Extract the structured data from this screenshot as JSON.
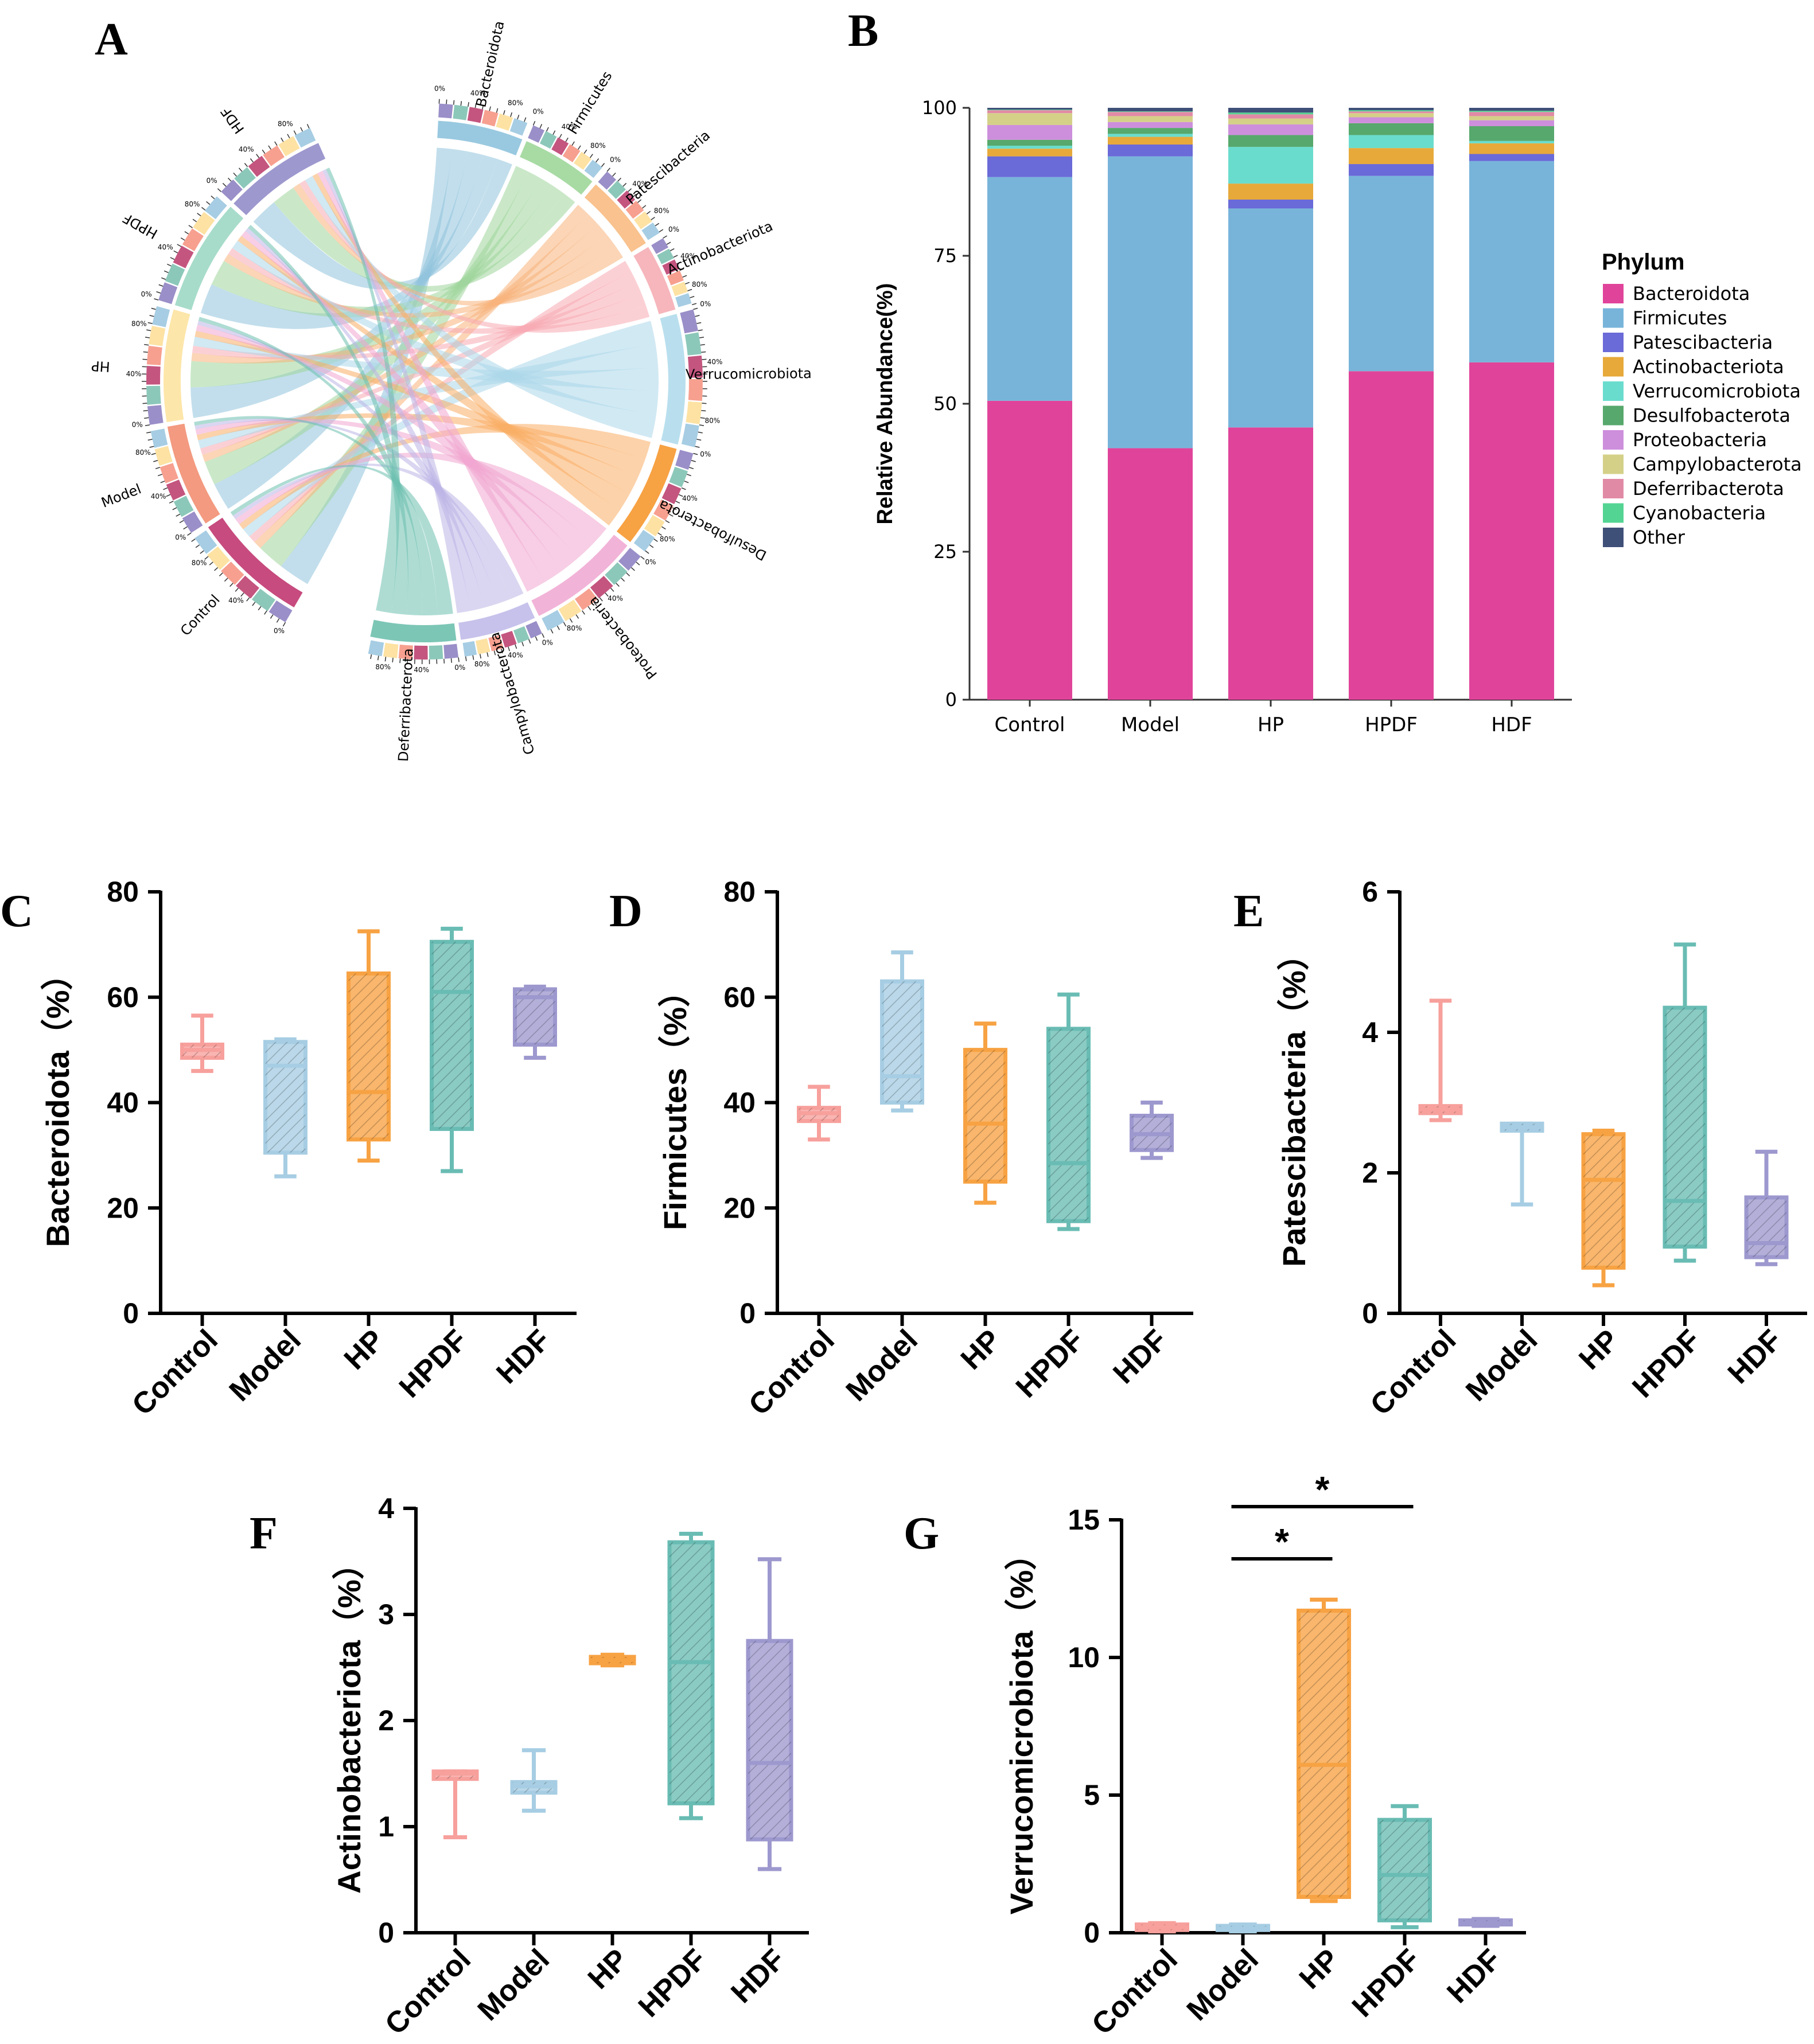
{
  "panels": {
    "A": "A",
    "B": "B",
    "C": "C",
    "D": "D",
    "E": "E",
    "F": "F",
    "G": "G"
  },
  "colors": {
    "groups": {
      "Control": "#f7a09c",
      "Model": "#a6cde3",
      "HP": "#f7a243",
      "HPDF": "#69bcb3",
      "HDF": "#9d98ce"
    },
    "phyla": {
      "Bacteroidota": "#e0449a",
      "Firmicutes": "#78b4da",
      "Patescibacteria": "#6a6ad8",
      "Actinobacteriota": "#e7a93a",
      "Verrucomicrobiota": "#6adccd",
      "Desulfobacterota": "#57a86c",
      "Proteobacteria": "#cd8fdc",
      "Campylobacterota": "#d4d088",
      "Deferribacterota": "#e18aa6",
      "Cyanobacteria": "#54d493",
      "Other": "#3f5078"
    }
  },
  "chord": {
    "groups": [
      "Control",
      "Model",
      "HP",
      "HPDF",
      "HDF"
    ],
    "phyla": [
      "Bacteroidota",
      "Firmicutes",
      "Patescibacteria",
      "Actinobacteriota",
      "Verrucomicrobiota",
      "Desulfobacterota",
      "Proteobacteria",
      "Campylobacterota",
      "Deferribacterota"
    ],
    "tick_labels": [
      "0%",
      "40%",
      "80%"
    ]
  },
  "chart_data": [
    {
      "panel": "B",
      "type": "bar",
      "stacked": true,
      "title": "",
      "xlabel": "",
      "ylabel": "Relative Abundance(%)",
      "ylim": [
        0,
        100
      ],
      "yticks": [
        "0",
        "25",
        "50",
        "75",
        "100"
      ],
      "categories": [
        "Control",
        "Model",
        "HP",
        "HPDF",
        "HDF"
      ],
      "legend_title": "Phylum",
      "series": [
        {
          "name": "Bacteroidota",
          "values": [
            50.5,
            42.5,
            46.0,
            55.5,
            57.0
          ]
        },
        {
          "name": "Firmicutes",
          "values": [
            37.8,
            49.3,
            37.0,
            33.0,
            34.0
          ]
        },
        {
          "name": "Patescibacteria",
          "values": [
            3.5,
            2.0,
            1.5,
            2.0,
            1.2
          ]
        },
        {
          "name": "Actinobacteriota",
          "values": [
            1.3,
            1.3,
            2.7,
            2.7,
            1.8
          ]
        },
        {
          "name": "Verrucomicrobiota",
          "values": [
            0.5,
            0.5,
            6.2,
            2.2,
            0.4
          ]
        },
        {
          "name": "Desulfobacterota",
          "values": [
            1.0,
            1.0,
            2.0,
            2.0,
            2.5
          ]
        },
        {
          "name": "Proteobacteria",
          "values": [
            2.5,
            1.0,
            1.8,
            1.0,
            1.0
          ]
        },
        {
          "name": "Campylobacterota",
          "values": [
            2.0,
            1.0,
            1.0,
            0.7,
            0.7
          ]
        },
        {
          "name": "Deferribacterota",
          "values": [
            0.5,
            0.7,
            0.7,
            0.3,
            0.7
          ]
        },
        {
          "name": "Cyanobacteria",
          "values": [
            0.1,
            0.1,
            0.3,
            0.2,
            0.2
          ]
        },
        {
          "name": "Other",
          "values": [
            0.3,
            0.6,
            0.8,
            0.4,
            0.5
          ]
        }
      ]
    },
    {
      "panel": "C",
      "type": "box",
      "ylabel": "Bacteroidota（%）",
      "ylim": [
        0,
        80
      ],
      "yticks": [
        "0",
        "20",
        "40",
        "60",
        "80"
      ],
      "categories": [
        "Control",
        "Model",
        "HP",
        "HPDF",
        "HDF"
      ],
      "boxes": [
        {
          "min": 46,
          "q1": 48.5,
          "median": 50,
          "q3": 51,
          "max": 56.5
        },
        {
          "min": 26,
          "q1": 30.5,
          "median": 47,
          "q3": 51.5,
          "max": 52
        },
        {
          "min": 29,
          "q1": 33,
          "median": 42,
          "q3": 64.5,
          "max": 72.5
        },
        {
          "min": 27,
          "q1": 35,
          "median": 61,
          "q3": 70.5,
          "max": 73
        },
        {
          "min": 48.5,
          "q1": 51,
          "median": 60,
          "q3": 61.5,
          "max": 62
        }
      ]
    },
    {
      "panel": "D",
      "type": "box",
      "ylabel": "Firmicutes（%）",
      "ylim": [
        0,
        80
      ],
      "yticks": [
        "0",
        "20",
        "40",
        "60",
        "80"
      ],
      "categories": [
        "Control",
        "Model",
        "HP",
        "HPDF",
        "HDF"
      ],
      "boxes": [
        {
          "min": 33,
          "q1": 36.5,
          "median": 38,
          "q3": 39,
          "max": 43
        },
        {
          "min": 38.5,
          "q1": 40,
          "median": 45,
          "q3": 63,
          "max": 68.5
        },
        {
          "min": 21,
          "q1": 25,
          "median": 36,
          "q3": 50,
          "max": 55
        },
        {
          "min": 16,
          "q1": 17.5,
          "median": 28.5,
          "q3": 54,
          "max": 60.5
        },
        {
          "min": 29.5,
          "q1": 31,
          "median": 34,
          "q3": 37.5,
          "max": 40
        }
      ]
    },
    {
      "panel": "E",
      "type": "box",
      "ylabel": "Patescibacteria（%）",
      "ylim": [
        0,
        6
      ],
      "yticks": [
        "0",
        "2",
        "4",
        "6"
      ],
      "categories": [
        "Control",
        "Model",
        "HP",
        "HPDF",
        "HDF"
      ],
      "boxes": [
        {
          "min": 2.75,
          "q1": 2.85,
          "median": 2.9,
          "q3": 2.95,
          "max": 4.45
        },
        {
          "min": 1.55,
          "q1": 2.6,
          "median": 2.65,
          "q3": 2.7,
          "max": 2.7
        },
        {
          "min": 0.4,
          "q1": 0.65,
          "median": 1.9,
          "q3": 2.55,
          "max": 2.6
        },
        {
          "min": 0.75,
          "q1": 0.95,
          "median": 1.6,
          "q3": 4.35,
          "max": 5.25
        },
        {
          "min": 0.7,
          "q1": 0.8,
          "median": 1.0,
          "q3": 1.65,
          "max": 2.3
        }
      ]
    },
    {
      "panel": "F",
      "type": "box",
      "ylabel": "Actinobacteriota（%）",
      "ylim": [
        0,
        4
      ],
      "yticks": [
        "0",
        "1",
        "2",
        "3",
        "4"
      ],
      "categories": [
        "Control",
        "Model",
        "HP",
        "HPDF",
        "HDF"
      ],
      "boxes": [
        {
          "min": 0.9,
          "q1": 1.45,
          "median": 1.5,
          "q3": 1.52,
          "max": 1.52
        },
        {
          "min": 1.15,
          "q1": 1.32,
          "median": 1.38,
          "q3": 1.42,
          "max": 1.72
        },
        {
          "min": 2.52,
          "q1": 2.54,
          "median": 2.57,
          "q3": 2.6,
          "max": 2.62
        },
        {
          "min": 1.08,
          "q1": 1.22,
          "median": 2.55,
          "q3": 3.68,
          "max": 3.76
        },
        {
          "min": 0.6,
          "q1": 0.88,
          "median": 1.6,
          "q3": 2.75,
          "max": 3.52
        }
      ]
    },
    {
      "panel": "G",
      "type": "box",
      "ylabel": "Verrucomicrobiota（%）",
      "ylim": [
        0,
        15
      ],
      "yticks": [
        "0",
        "5",
        "10",
        "15"
      ],
      "categories": [
        "Control",
        "Model",
        "HP",
        "HPDF",
        "HDF"
      ],
      "boxes": [
        {
          "min": 0.05,
          "q1": 0.1,
          "median": 0.2,
          "q3": 0.3,
          "max": 0.35
        },
        {
          "min": 0.05,
          "q1": 0.1,
          "median": 0.15,
          "q3": 0.25,
          "max": 0.3
        },
        {
          "min": 1.15,
          "q1": 1.3,
          "median": 6.1,
          "q3": 11.7,
          "max": 12.1
        },
        {
          "min": 0.2,
          "q1": 0.45,
          "median": 2.1,
          "q3": 4.1,
          "max": 4.6
        },
        {
          "min": 0.25,
          "q1": 0.3,
          "median": 0.35,
          "q3": 0.45,
          "max": 0.5
        }
      ],
      "significance": [
        {
          "from": "Model",
          "to": "HP",
          "label": "*"
        },
        {
          "from": "Model",
          "to": "HPDF",
          "label": "*"
        }
      ]
    }
  ]
}
